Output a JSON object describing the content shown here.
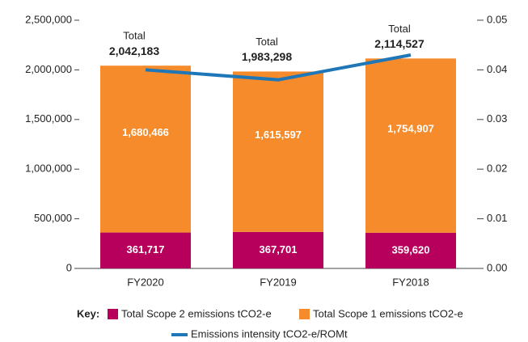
{
  "chart_data": {
    "type": "bar",
    "categories": [
      "FY2020",
      "FY2019",
      "FY2018"
    ],
    "stacked": true,
    "series": [
      {
        "name": "Total Scope 2 emissions tCO2-e",
        "color": "#b7005c",
        "values": [
          361717,
          367701,
          359620
        ],
        "value_labels": [
          "361,717",
          "367,701",
          "359,620"
        ]
      },
      {
        "name": "Total Scope 1 emissions tCO2-e",
        "color": "#f68b2b",
        "values": [
          1680466,
          1615597,
          1754907
        ],
        "value_labels": [
          "1,680,466",
          "1,615,597",
          "1,754,907"
        ]
      },
      {
        "name": "Emissions intensity tCO2-e/ROMt",
        "type": "line",
        "axis": "y2",
        "color": "#1f77b8",
        "values": [
          0.04,
          0.038,
          0.043
        ]
      }
    ],
    "totals": {
      "label": "Total",
      "values": [
        2042183,
        1983298,
        2114527
      ],
      "value_labels": [
        "2,042,183",
        "1,983,298",
        "2,114,527"
      ]
    },
    "legend_key": "Key:",
    "ylim": [
      0,
      2500000
    ],
    "yticks": [
      0,
      {
        "value": 500000,
        "label": "500,000"
      },
      {
        "value": 1000000,
        "label": "1,000,000"
      },
      {
        "value": 1500000,
        "label": "1,500,000"
      },
      {
        "value": 2000000,
        "label": "2,000,000"
      },
      {
        "value": 2500000,
        "label": "2,500,000"
      }
    ],
    "y2lim": [
      0,
      0.05
    ],
    "y2ticks": [
      {
        "value": 0,
        "label": "0.00"
      },
      0.01,
      0.02,
      0.03,
      0.04,
      0.05
    ],
    "grid": false
  }
}
